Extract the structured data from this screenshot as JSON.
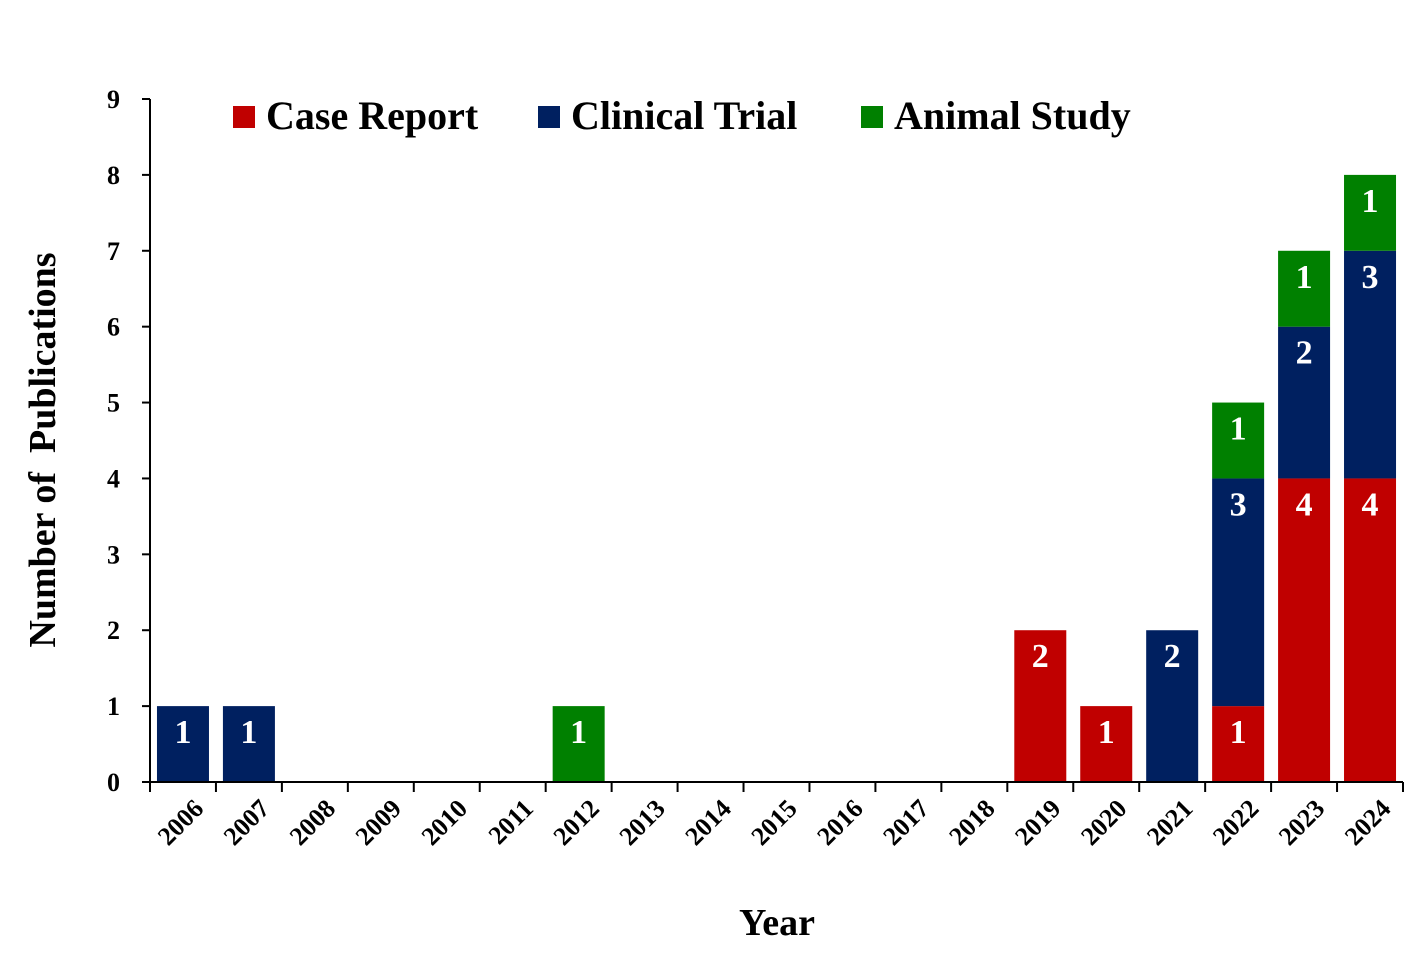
{
  "chart_data": {
    "type": "bar",
    "stacked": true,
    "title": "",
    "xlabel": "Year",
    "ylabel": "Number of  Publications",
    "ylim": [
      0,
      9
    ],
    "yticks": [
      "0",
      "1",
      "2",
      "3",
      "4",
      "5",
      "6",
      "7",
      "8",
      "9"
    ],
    "categories": [
      "2006",
      "2007",
      "2008",
      "2009",
      "2010",
      "2011",
      "2012",
      "2013",
      "2014",
      "2015",
      "2016",
      "2017",
      "2018",
      "2019",
      "2020",
      "2021",
      "2022",
      "2023",
      "2024"
    ],
    "series": [
      {
        "name": "Case Report",
        "color": "#C00000",
        "values": [
          0,
          0,
          0,
          0,
          0,
          0,
          0,
          0,
          0,
          0,
          0,
          0,
          0,
          2,
          1,
          0,
          1,
          4,
          4
        ]
      },
      {
        "name": "Clinical Trial",
        "color": "#002060",
        "values": [
          1,
          1,
          0,
          0,
          0,
          0,
          0,
          0,
          0,
          0,
          0,
          0,
          0,
          0,
          0,
          2,
          3,
          2,
          3
        ]
      },
      {
        "name": "Animal Study",
        "color": "#008000",
        "values": [
          0,
          0,
          0,
          0,
          0,
          0,
          1,
          0,
          0,
          0,
          0,
          0,
          0,
          0,
          0,
          0,
          1,
          1,
          1
        ]
      }
    ],
    "legend_position": "top",
    "grid": false
  }
}
